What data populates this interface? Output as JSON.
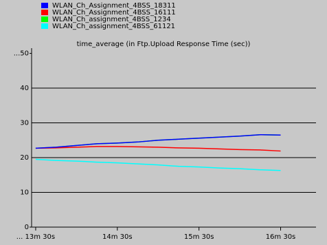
{
  "chart_data": {
    "type": "line",
    "title": "time_average (in Ftp.Upload Response Time (sec))",
    "legend": "top",
    "grid": true,
    "x": [
      810,
      825,
      840,
      855,
      870,
      885,
      900,
      915,
      930,
      945,
      960,
      975,
      990
    ],
    "xlim": [
      807,
      1016
    ],
    "xticks": [
      {
        "value": 810,
        "label": "... 13m 30s"
      },
      {
        "value": 870,
        "label": "14m 30s"
      },
      {
        "value": 930,
        "label": "15m 30s"
      },
      {
        "value": 990,
        "label": "16m 30s"
      }
    ],
    "ylim": [
      0,
      51.5
    ],
    "yticks": [
      0,
      10,
      20,
      30,
      40,
      {
        "value": 50,
        "label": "...50"
      }
    ],
    "series": [
      {
        "name": "WLAN_Ch_Assignment_4BSS_18311",
        "color": "#0000ff",
        "values": [
          22.7,
          23.0,
          23.5,
          24.0,
          24.2,
          24.5,
          25.0,
          25.3,
          25.6,
          25.9,
          26.2,
          26.6,
          26.5
        ]
      },
      {
        "name": "WLAN_Ch_Assignment_4BSS_16111",
        "color": "#ff0000",
        "values": [
          22.7,
          22.8,
          23.0,
          23.2,
          23.2,
          23.1,
          23.0,
          22.8,
          22.7,
          22.5,
          22.3,
          22.2,
          21.9
        ]
      },
      {
        "name": "WLAN_Ch_assignment_4BSS_1234",
        "color": "#00ff00",
        "values": [
          22.7,
          23.0,
          23.5,
          24.0,
          24.2,
          24.5,
          25.0,
          25.3,
          25.6,
          25.9,
          26.2,
          26.6,
          26.5
        ]
      },
      {
        "name": "WLAN_Ch_assignment_4BSS_61121",
        "color": "#00ffff",
        "values": [
          19.5,
          19.2,
          19.0,
          18.7,
          18.5,
          18.2,
          17.9,
          17.5,
          17.3,
          17.0,
          16.8,
          16.5,
          16.3
        ]
      }
    ]
  }
}
